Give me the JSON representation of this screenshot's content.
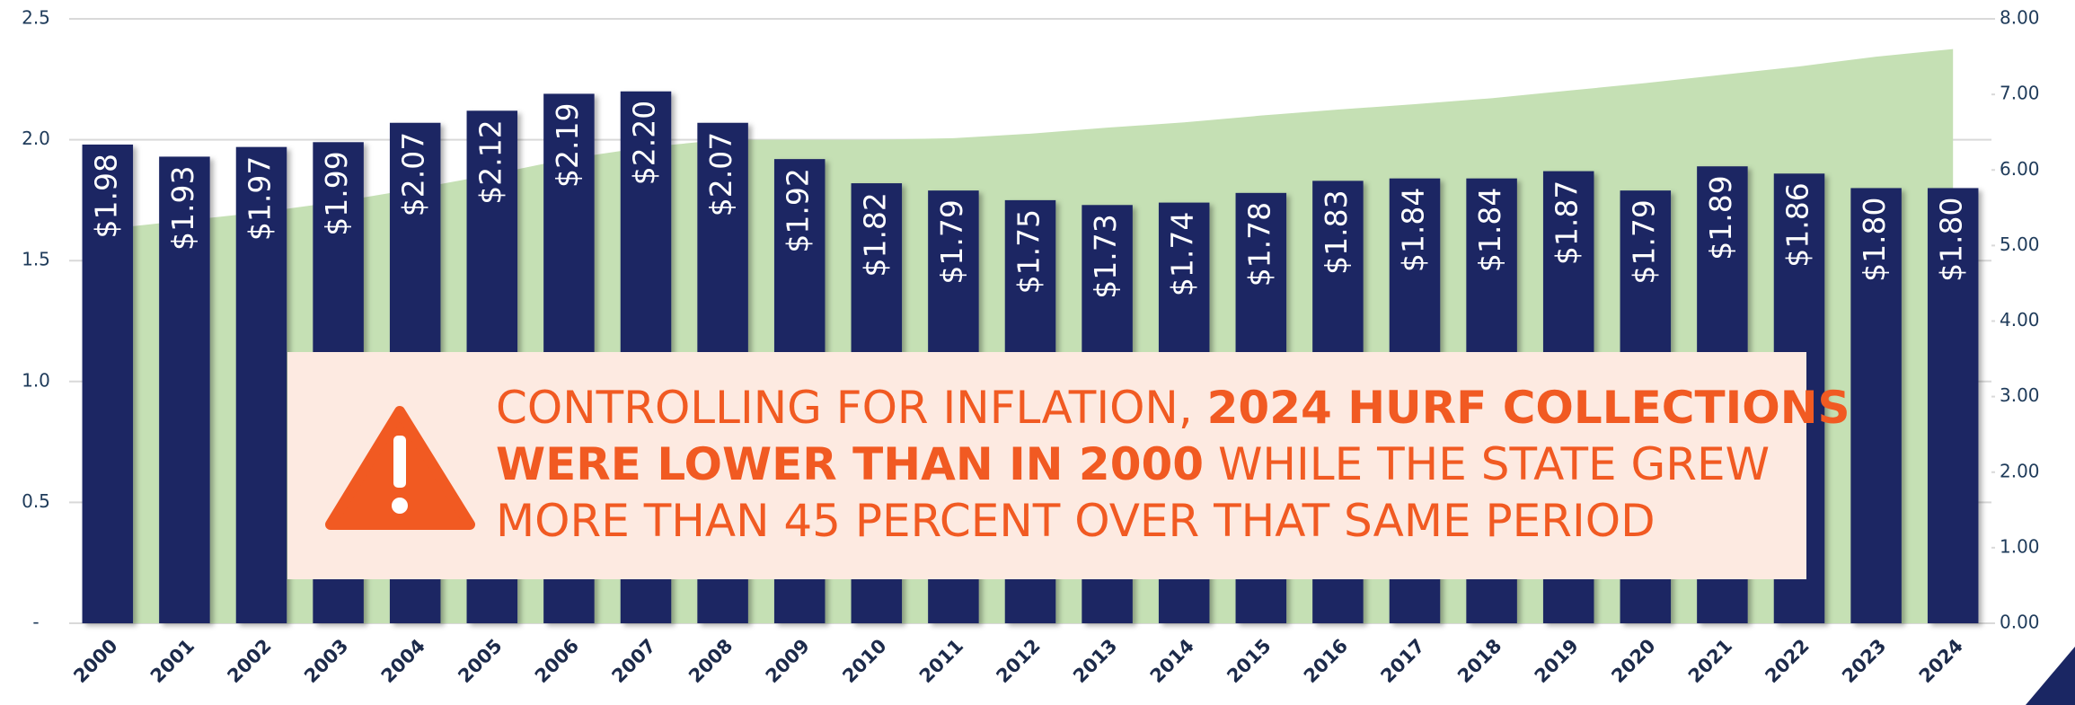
{
  "chart_data": {
    "type": "bar",
    "categories": [
      "2000",
      "2001",
      "2002",
      "2003",
      "2004",
      "2005",
      "2006",
      "2007",
      "2008",
      "2009",
      "2010",
      "2011",
      "2012",
      "2013",
      "2014",
      "2015",
      "2016",
      "2017",
      "2018",
      "2019",
      "2020",
      "2021",
      "2022",
      "2023",
      "2024"
    ],
    "series": [
      {
        "type": "bar",
        "color": "#1a2663",
        "values": [
          1.98,
          1.93,
          1.97,
          1.99,
          2.07,
          2.12,
          2.19,
          2.2,
          2.07,
          1.92,
          1.82,
          1.79,
          1.75,
          1.73,
          1.74,
          1.78,
          1.83,
          1.84,
          1.84,
          1.87,
          1.79,
          1.89,
          1.86,
          1.8,
          1.8
        ],
        "value_labels": [
          "$1.98",
          "$1.93",
          "$1.97",
          "$1.99",
          "$2.07",
          "$2.12",
          "$2.19",
          "$2.20",
          "$2.07",
          "$1.92",
          "$1.82",
          "$1.79",
          "$1.75",
          "$1.73",
          "$1.74",
          "$1.78",
          "$1.83",
          "$1.84",
          "$1.84",
          "$1.87",
          "$1.79",
          "$1.89",
          "$1.86",
          "$1.80",
          "$1.80"
        ]
      },
      {
        "type": "area",
        "axis": "y2",
        "color": "#c5e0b4",
        "values": [
          5.22,
          5.33,
          5.44,
          5.58,
          5.75,
          5.94,
          6.15,
          6.3,
          6.4,
          6.4,
          6.4,
          6.42,
          6.48,
          6.56,
          6.63,
          6.72,
          6.8,
          6.87,
          6.95,
          7.05,
          7.15,
          7.26,
          7.37,
          7.5,
          7.6
        ]
      }
    ],
    "ylim": [
      0,
      2.5
    ],
    "yticks": [
      {
        "value": 0,
        "label": "-"
      },
      0.5,
      {
        "value": 1,
        "label": "1.0"
      },
      1.5,
      {
        "value": 2,
        "label": "2.0"
      },
      2.5
    ],
    "y2lim": [
      0,
      8
    ],
    "y2ticks": [
      {
        "value": 0,
        "label": "0.00"
      },
      {
        "value": 1,
        "label": "1.00"
      },
      {
        "value": 2,
        "label": "2.00"
      },
      {
        "value": 3,
        "label": "3.00"
      },
      {
        "value": 4,
        "label": "4.00"
      },
      {
        "value": 5,
        "label": "5.00"
      },
      {
        "value": 6,
        "label": "6.00"
      },
      {
        "value": 7,
        "label": "7.00"
      },
      {
        "value": 8,
        "label": "8.00"
      }
    ],
    "grid": true,
    "annotation": {
      "color": "#f15a22",
      "lines": [
        [
          {
            "text": "CONTROLLING FOR INFLATION, ",
            "bold": false
          },
          {
            "text": "2024 HURF COLLECTIONS",
            "bold": true
          }
        ],
        [
          {
            "text": "WERE LOWER THAN IN 2000",
            "bold": true
          },
          {
            "text": " WHILE THE STATE GREW",
            "bold": false
          }
        ],
        [
          {
            "text": "MORE THAN 45 PERCENT OVER THAT SAME PERIOD",
            "bold": false
          }
        ]
      ]
    }
  }
}
